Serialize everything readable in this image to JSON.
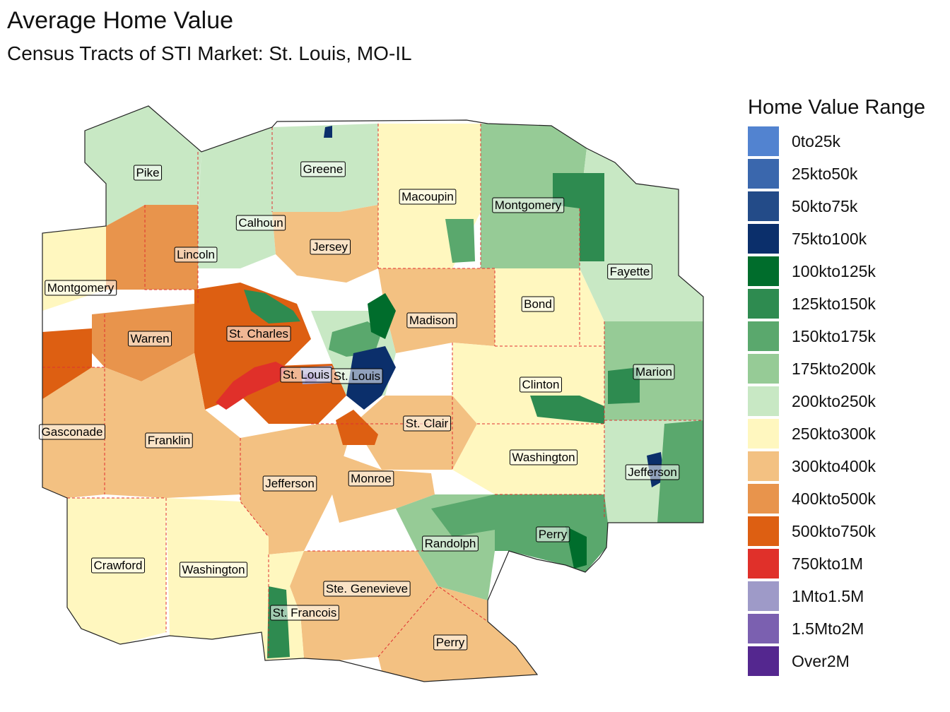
{
  "title": "Average Home Value",
  "subtitle": "Census Tracts of STI Market: St. Louis, MO-IL",
  "legend": {
    "title": "Home Value Range",
    "items": [
      {
        "label": "0to25k",
        "color": "#5283d0"
      },
      {
        "label": "25kto50k",
        "color": "#3a67ad"
      },
      {
        "label": "50kto75k",
        "color": "#234b88"
      },
      {
        "label": "75kto100k",
        "color": "#0b2f6b"
      },
      {
        "label": "100kto125k",
        "color": "#006d2c"
      },
      {
        "label": "125kto150k",
        "color": "#2e8b50"
      },
      {
        "label": "150kto175k",
        "color": "#5aa86d"
      },
      {
        "label": "175kto200k",
        "color": "#96cb96"
      },
      {
        "label": "200kto250k",
        "color": "#c8e8c4"
      },
      {
        "label": "250kto300k",
        "color": "#fff7bf"
      },
      {
        "label": "300kto400k",
        "color": "#f3c182"
      },
      {
        "label": "400kto500k",
        "color": "#e8944c"
      },
      {
        "label": "500kto750k",
        "color": "#dd5f12"
      },
      {
        "label": "750kto1M",
        "color": "#e0302a"
      },
      {
        "label": "1Mto1.5M",
        "color": "#9e9ac8"
      },
      {
        "label": "1.5Mto2M",
        "color": "#7b60b0"
      },
      {
        "label": "Over2M",
        "color": "#54278f"
      }
    ]
  },
  "counties": [
    {
      "name": "Pike",
      "range": "200kto250k"
    },
    {
      "name": "Greene",
      "range": "200kto250k"
    },
    {
      "name": "Macoupin",
      "range": "250kto300k"
    },
    {
      "name": "Montgomery",
      "range": "175kto200k"
    },
    {
      "name": "Calhoun",
      "range": "200kto250k"
    },
    {
      "name": "Jersey",
      "range": "300kto400k"
    },
    {
      "name": "Lincoln",
      "range": "400kto500k"
    },
    {
      "name": "Montgomery",
      "range": "250kto300k"
    },
    {
      "name": "Fayette",
      "range": "200kto250k"
    },
    {
      "name": "Bond",
      "range": "250kto300k"
    },
    {
      "name": "Madison",
      "range": "300kto400k"
    },
    {
      "name": "Warren",
      "range": "400kto500k"
    },
    {
      "name": "St. Charles",
      "range": "500kto750k"
    },
    {
      "name": "St. Louis",
      "range": "500kto750k"
    },
    {
      "name": "St. Louis",
      "range": "200kto250k"
    },
    {
      "name": "Marion",
      "range": "175kto200k"
    },
    {
      "name": "Clinton",
      "range": "250kto300k"
    },
    {
      "name": "St. Clair",
      "range": "300kto400k"
    },
    {
      "name": "Gasconade",
      "range": "300kto400k"
    },
    {
      "name": "Franklin",
      "range": "300kto400k"
    },
    {
      "name": "Washington",
      "range": "250kto300k"
    },
    {
      "name": "Jefferson",
      "range": "200kto250k"
    },
    {
      "name": "Jefferson",
      "range": "300kto400k"
    },
    {
      "name": "Monroe",
      "range": "300kto400k"
    },
    {
      "name": "Randolph",
      "range": "175kto200k"
    },
    {
      "name": "Perry",
      "range": "150kto175k"
    },
    {
      "name": "Crawford",
      "range": "250kto300k"
    },
    {
      "name": "Washington",
      "range": "250kto300k"
    },
    {
      "name": "Ste. Genevieve",
      "range": "300kto400k"
    },
    {
      "name": "St. Francois",
      "range": "250kto300k"
    },
    {
      "name": "Perry",
      "range": "300kto400k"
    }
  ]
}
